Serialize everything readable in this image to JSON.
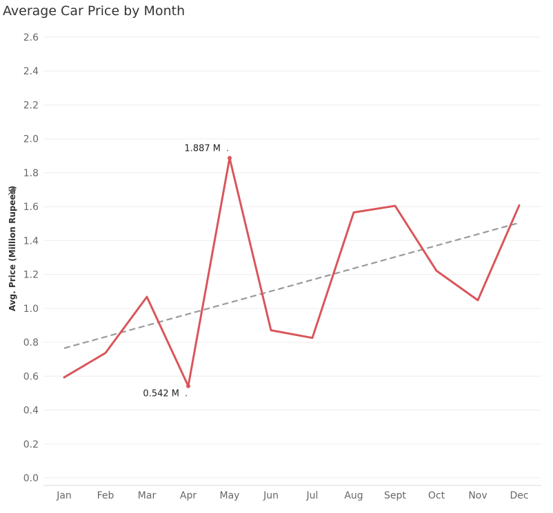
{
  "chart_data": {
    "type": "line",
    "title": "Average Car Price by Month",
    "xlabel": "",
    "ylabel": "Avg. Price (Million Rupees)",
    "categories": [
      "Jan",
      "Feb",
      "Mar",
      "Apr",
      "May",
      "Jun",
      "Jul",
      "Aug",
      "Sept",
      "Oct",
      "Nov",
      "Dec"
    ],
    "series": [
      {
        "values": [
          0.593,
          0.737,
          1.068,
          0.542,
          1.887,
          0.871,
          0.826,
          1.566,
          1.605,
          1.222,
          1.048,
          1.608
        ],
        "color": "#d9555a"
      }
    ],
    "trend_line": {
      "start": 0.765,
      "end": 1.505,
      "color": "#999999",
      "style": "dashed"
    },
    "annotations": [
      {
        "category": "May",
        "text": "1.887 M",
        "position": "above-left"
      },
      {
        "category": "Apr",
        "text": "0.542 M",
        "position": "below-left"
      }
    ],
    "ylim": [
      0,
      2.6
    ],
    "yticks": [
      "0.0",
      "0.2",
      "0.4",
      "0.6",
      "0.8",
      "1.0",
      "1.2",
      "1.4",
      "1.6",
      "1.8",
      "2.0",
      "2.2",
      "2.4",
      "2.6"
    ],
    "grid": true,
    "legend": "none"
  },
  "ylabel_icon": "pin-icon"
}
